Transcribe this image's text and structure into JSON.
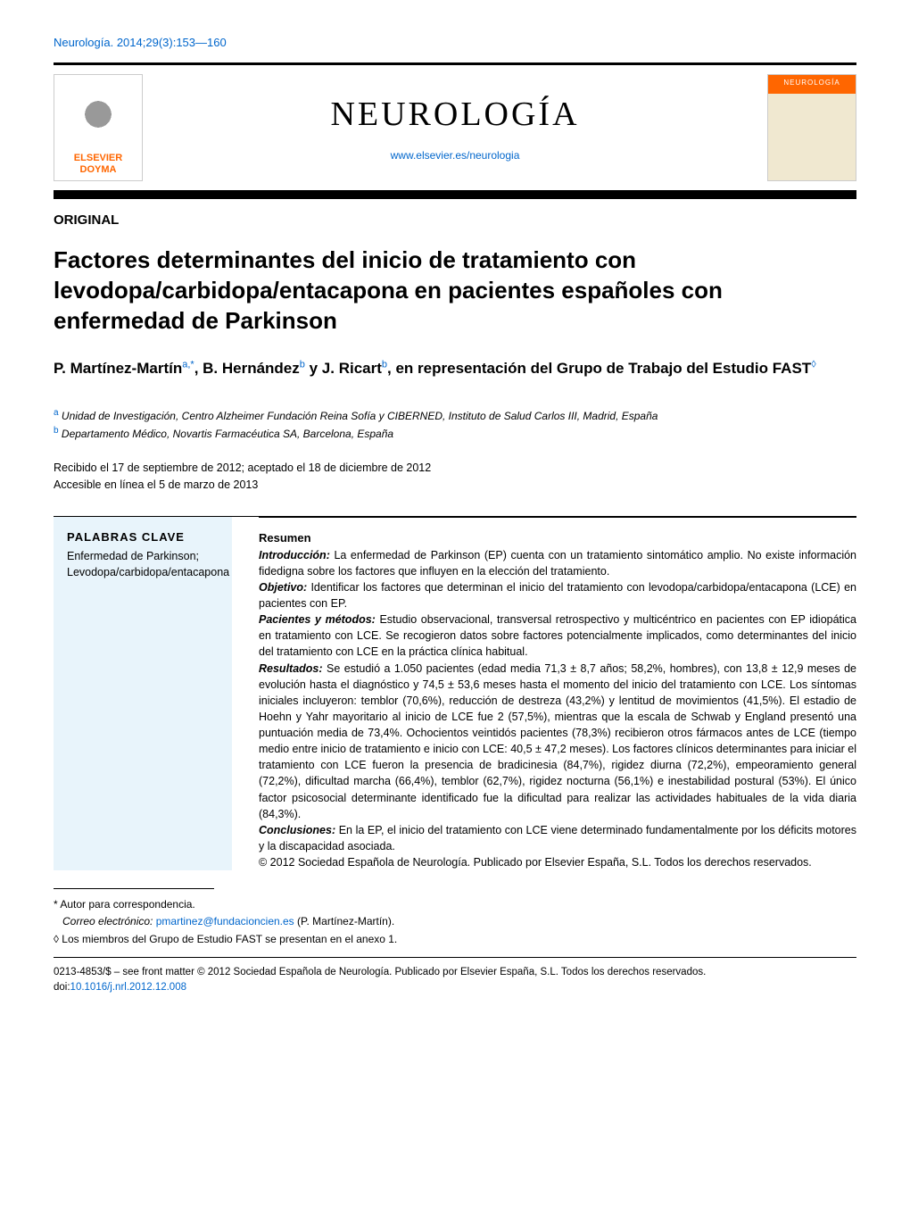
{
  "citation": "Neurología. 2014;29(3):153—160",
  "publisher_logo": {
    "line1": "ELSEVIER",
    "line2": "DOYMA"
  },
  "journal": {
    "title": "NEUROLOGÍA",
    "url": "www.elsevier.es/neurologia",
    "cover_label": "NEUROLOGÍA"
  },
  "article_type": "ORIGINAL",
  "title": "Factores determinantes del inicio de tratamiento con levodopa/carbidopa/entacapona en pacientes españoles con enfermedad de Parkinson",
  "authors_html": "P. Martínez-Martín<sup>a,*</sup>, B. Hernández<sup>b</sup> y J. Ricart<sup>b</sup>, en representación del Grupo de Trabajo del Estudio FAST<sup>◊</sup>",
  "affiliations": [
    {
      "sup": "a",
      "text": "Unidad de Investigación, Centro Alzheimer Fundación Reina Sofía y CIBERNED, Instituto de Salud Carlos III, Madrid, España"
    },
    {
      "sup": "b",
      "text": "Departamento Médico, Novartis Farmacéutica SA, Barcelona, España"
    }
  ],
  "dates": {
    "received_accepted": "Recibido el 17 de septiembre de 2012; aceptado el 18 de diciembre de 2012",
    "online": "Accesible en línea el 5 de marzo de 2013"
  },
  "keywords": {
    "heading": "PALABRAS CLAVE",
    "text": "Enfermedad de Parkinson; Levodopa/carbidopa/entacapona"
  },
  "abstract": {
    "heading": "Resumen",
    "intro_label": "Introducción:",
    "intro": "La enfermedad de Parkinson (EP) cuenta con un tratamiento sintomático amplio. No existe información fidedigna sobre los factores que influyen en la elección del tratamiento.",
    "objective_label": "Objetivo:",
    "objective": "Identificar los factores que determinan el inicio del tratamiento con levodopa/carbidopa/entacapona (LCE) en pacientes con EP.",
    "methods_label": "Pacientes y métodos:",
    "methods": "Estudio observacional, transversal retrospectivo y multicéntrico en pacientes con EP idiopática en tratamiento con LCE. Se recogieron datos sobre factores potencialmente implicados, como determinantes del inicio del tratamiento con LCE en la práctica clínica habitual.",
    "results_label": "Resultados:",
    "results": "Se estudió a 1.050 pacientes (edad media 71,3 ± 8,7 años; 58,2%, hombres), con 13,8 ± 12,9 meses de evolución hasta el diagnóstico y 74,5 ± 53,6 meses hasta el momento del inicio del tratamiento con LCE. Los síntomas iniciales incluyeron: temblor (70,6%), reducción de destreza (43,2%) y lentitud de movimientos (41,5%). El estadio de Hoehn y Yahr mayoritario al inicio de LCE fue 2 (57,5%), mientras que la escala de Schwab y England presentó una puntuación media de 73,4%. Ochocientos veintidós pacientes (78,3%) recibieron otros fármacos antes de LCE (tiempo medio entre inicio de tratamiento e inicio con LCE: 40,5 ± 47,2 meses). Los factores clínicos determinantes para iniciar el tratamiento con LCE fueron la presencia de bradicinesia (84,7%), rigidez diurna (72,2%), empeoramiento general (72,2%), dificultad marcha (66,4%), temblor (62,7%), rigidez nocturna (56,1%) e inestabilidad postural (53%). El único factor psicosocial determinante identificado fue la dificultad para realizar las actividades habituales de la vida diaria (84,3%).",
    "conclusions_label": "Conclusiones:",
    "conclusions": "En la EP, el inicio del tratamiento con LCE viene determinado fundamentalmente por los déficits motores y la discapacidad asociada.",
    "copyright": "© 2012 Sociedad Española de Neurología. Publicado por Elsevier España, S.L. Todos los derechos reservados."
  },
  "footnotes": {
    "corresponding_label": "* Autor para correspondencia.",
    "email_label": "Correo electrónico:",
    "email": "pmartinez@fundacioncien.es",
    "email_author": "(P. Martínez-Martín).",
    "group_note": "◊ Los miembros del Grupo de Estudio FAST se presentan en el anexo 1."
  },
  "copyright_footer": {
    "issn": "0213-4853/$ – see front matter © 2012 Sociedad Española de Neurología. Publicado por Elsevier España, S.L. Todos los derechos reservados.",
    "doi_label": "doi:",
    "doi": "10.1016/j.nrl.2012.12.008"
  },
  "colors": {
    "link": "#0066cc",
    "accent": "#ff6600",
    "keywords_bg": "#e8f4fb"
  }
}
